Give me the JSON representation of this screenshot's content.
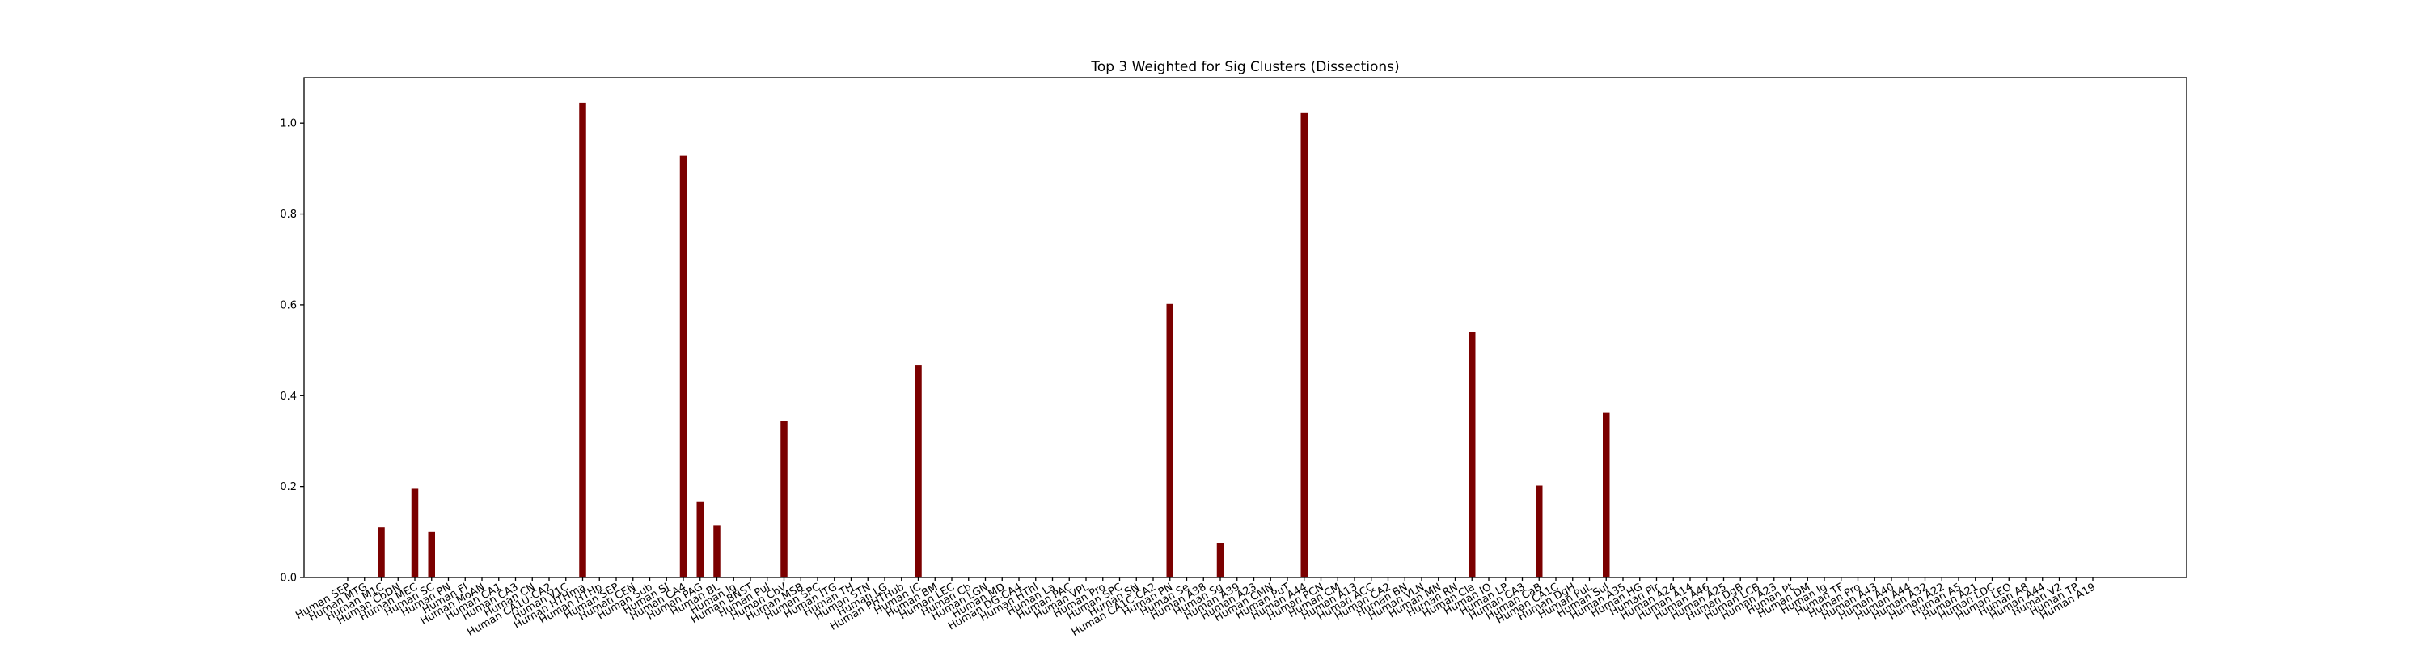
{
  "chart_data": {
    "type": "bar",
    "title": "Top 3 Weighted for Sig Clusters (Dissections)",
    "xlabel": "",
    "ylabel": "",
    "ylim": [
      0,
      1.1
    ],
    "yticks": [
      "0.0",
      "0.2",
      "0.4",
      "0.6",
      "0.8",
      "1.0"
    ],
    "bar_color": "#7b0000",
    "grid": false,
    "categories": [
      "Human SEP",
      "Human MTG",
      "Human M1C",
      "Human CbDN",
      "Human MEC",
      "Human SC",
      "Human PN",
      "Human FI",
      "Human MoAN",
      "Human CA1",
      "Human CA3",
      "Human CN",
      "Human CA1U-CA2",
      "Human V1C",
      "Human HTHma",
      "Human HTHp",
      "Human SEP",
      "Human CEN",
      "Human Sub",
      "Human SI",
      "Human CA4",
      "Human PAG",
      "Human BL",
      "Human Ig",
      "Human BNST",
      "Human Pul",
      "Human CbV",
      "Human MSB",
      "Human SPC",
      "Human ITG",
      "Human TH",
      "Human STN",
      "Human LG",
      "Human PHTHub",
      "Human IC",
      "Human BM",
      "Human LEC",
      "Human Cb",
      "Human LGN",
      "Human MD",
      "Human DG-CA4",
      "Human HThl",
      "Human La",
      "Human PAC",
      "Human VPL",
      "Human Pro",
      "Human SPC",
      "Human SN",
      "Human CA1C-CA2",
      "Human PN",
      "Human Se",
      "Human A38",
      "Human Sg",
      "Human A39",
      "Human A23",
      "Human CMN",
      "Human PuT",
      "Human A44",
      "Human PCN",
      "Human CM",
      "Human A13",
      "Human ACC",
      "Human CA2",
      "Human BN",
      "Human VLN",
      "Human MN",
      "Human RN",
      "Human Cla",
      "Human IO",
      "Human LP",
      "Human CA3",
      "Human CaB",
      "Human CA1C",
      "Human DgH",
      "Human PuL",
      "Human Sul",
      "Human A35",
      "Human HG",
      "Human Pir",
      "Human A24",
      "Human A14",
      "Human A46",
      "Human A25",
      "Human DgB",
      "Human LCB",
      "Human A23",
      "Human Pt",
      "Human DM",
      "Human Ig",
      "Human TF",
      "Human Pro",
      "Human A43",
      "Human A40",
      "Human A44",
      "Human A32",
      "Human A22",
      "Human A5",
      "Human A21",
      "Human LDC",
      "Human LEO",
      "Human A8",
      "Human A44",
      "Human V2",
      "Human TP",
      "Human A19"
    ],
    "values": [
      0,
      0,
      0.11,
      0,
      0.195,
      0.1,
      0,
      0,
      0,
      0,
      0,
      0,
      0,
      0,
      1.045,
      0,
      0,
      0,
      0,
      0,
      0.928,
      0.166,
      0.115,
      0,
      0,
      0,
      0.344,
      0,
      0,
      0,
      0,
      0,
      0,
      0,
      0.468,
      0,
      0,
      0,
      0,
      0,
      0,
      0,
      0,
      0,
      0,
      0,
      0,
      0,
      0,
      0.602,
      0,
      0,
      0.076,
      0,
      0,
      0,
      0,
      1.022,
      0,
      0,
      0,
      0,
      0,
      0,
      0,
      0,
      0,
      0.54,
      0,
      0,
      0,
      0.202,
      0,
      0,
      0,
      0.362,
      0,
      0,
      0,
      0,
      0,
      0,
      0,
      0,
      0,
      0,
      0,
      0,
      0,
      0,
      0,
      0,
      0,
      0,
      0,
      0,
      0,
      0,
      0,
      0,
      0,
      0,
      0,
      0,
      0
    ]
  }
}
